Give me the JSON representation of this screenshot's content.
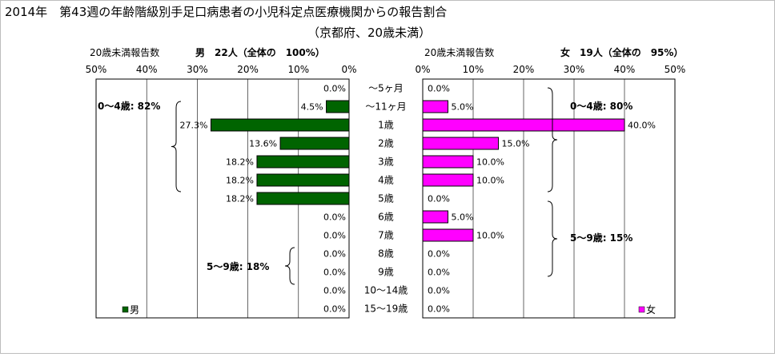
{
  "title": {
    "line1": "2014年　第43週の年齢階級別手足口病患者の小児科定点医療機関からの報告割合",
    "line2": "（京都府、20歳未満）"
  },
  "chart_data": [
    {
      "type": "bar",
      "orientation": "horizontal",
      "direction": "right-to-left",
      "header_left": "20歳未満報告数",
      "header_right": "男　22人（全体の　100%）",
      "x_ticks": [
        "50%",
        "40%",
        "30%",
        "20%",
        "10%",
        "0%"
      ],
      "xlim": [
        0,
        50
      ],
      "grid": true,
      "categories": [
        "～5ヶ月",
        "～11ヶ月",
        "1歳",
        "2歳",
        "3歳",
        "4歳",
        "5歳",
        "6歳",
        "7歳",
        "8歳",
        "9歳",
        "10～14歳",
        "15～19歳"
      ],
      "series": [
        {
          "name": "男",
          "color": "#006400",
          "values": [
            0.0,
            4.5,
            27.3,
            13.6,
            18.2,
            18.2,
            18.2,
            0.0,
            0.0,
            0.0,
            0.0,
            0.0,
            0.0
          ],
          "labels": [
            "0.0%",
            "4.5%",
            "27.3%",
            "13.6%",
            "18.2%",
            "18.2%",
            "18.2%",
            "0.0%",
            "0.0%",
            "0.0%",
            "0.0%",
            "0.0%",
            "0.0%"
          ]
        }
      ],
      "annotations": [
        "0～4歳: 82%",
        "5～9歳: 18%"
      ],
      "legend": "bottom-left"
    },
    {
      "type": "bar",
      "orientation": "horizontal",
      "direction": "left-to-right",
      "header_left": "20歳未満報告数",
      "header_right": "女　19人（全体の　95%）",
      "x_ticks": [
        "0%",
        "10%",
        "20%",
        "30%",
        "40%",
        "50%"
      ],
      "xlim": [
        0,
        50
      ],
      "grid": true,
      "categories": [
        "～5ヶ月",
        "～11ヶ月",
        "1歳",
        "2歳",
        "3歳",
        "4歳",
        "5歳",
        "6歳",
        "7歳",
        "8歳",
        "9歳",
        "10～14歳",
        "15～19歳"
      ],
      "series": [
        {
          "name": "女",
          "color": "#ff00ff",
          "values": [
            0.0,
            5.0,
            40.0,
            15.0,
            10.0,
            10.0,
            0.0,
            5.0,
            10.0,
            0.0,
            0.0,
            0.0,
            0.0
          ],
          "labels": [
            "0.0%",
            "5.0%",
            "40.0%",
            "15.0%",
            "10.0%",
            "10.0%",
            "0.0%",
            "5.0%",
            "10.0%",
            "0.0%",
            "0.0%",
            "0.0%",
            "0.0%"
          ]
        }
      ],
      "annotations": [
        "0～4歳: 80%",
        "5～9歳: 15%"
      ],
      "legend": "bottom-right"
    }
  ]
}
